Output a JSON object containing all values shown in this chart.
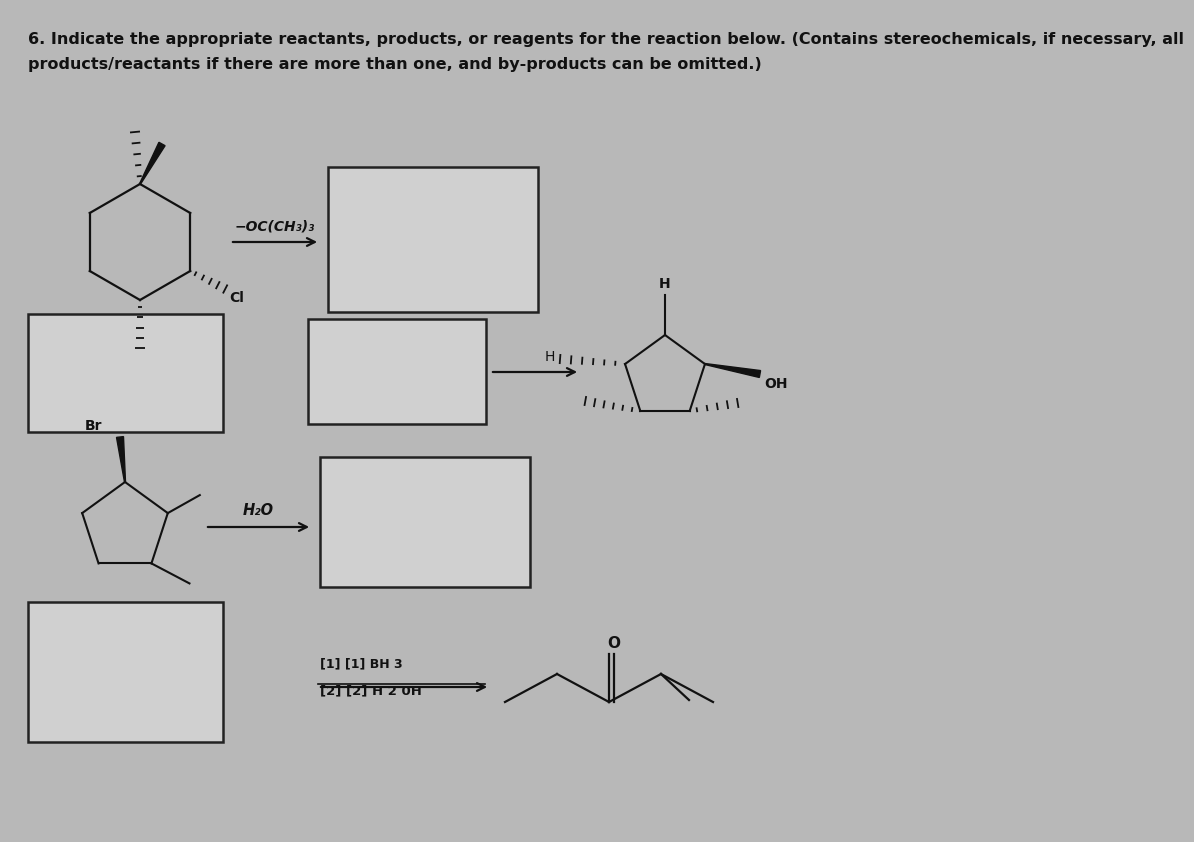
{
  "title_line1": "6. Indicate the appropriate reactants, products, or reagents for the reaction below. (Contains stereochemicals, if necessary, all",
  "title_line2": "products/reactants if there are more than one, and by-products can be omitted.)",
  "background_color": "#b8b8b8",
  "box_facecolor": "#d0d0d0",
  "box_edgecolor": "#222222",
  "text_color": "#111111",
  "reagent1_top": "−OC(CH₃)₃",
  "reagent2_top": "H₂O",
  "reagent3_line1": "[1] [1] BH 3",
  "reagent3_line2": "[2] [2] H 2 0H",
  "arrow_color": "#111111",
  "mol_color": "#111111"
}
